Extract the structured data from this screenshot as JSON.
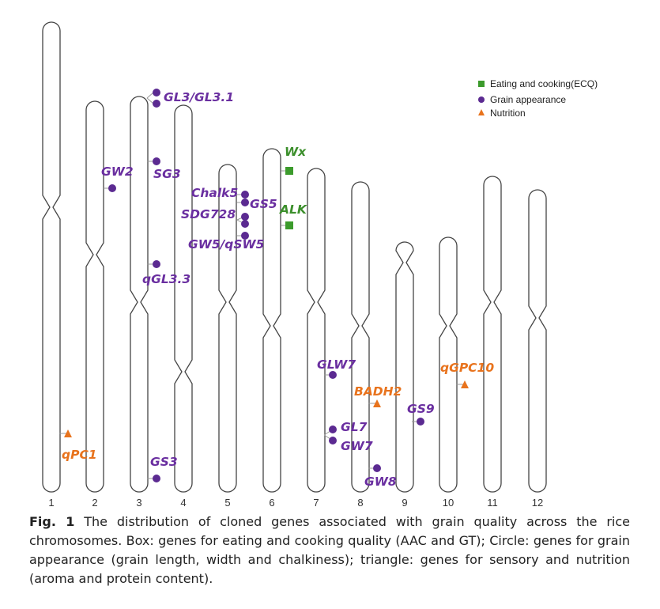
{
  "colors": {
    "ecq": "#3c8f2c",
    "appearance": "#6a2fa0",
    "appearance_fill": "#5b2a91",
    "nutrition": "#e8731d"
  },
  "legend": {
    "ecq": "Eating and cooking(ECQ)",
    "appearance": "Grain appearance",
    "nutrition": "Nutrition"
  },
  "chromosome_numbers": [
    "1",
    "2",
    "3",
    "4",
    "5",
    "6",
    "7",
    "8",
    "9",
    "10",
    "11",
    "12"
  ],
  "genes": [
    {
      "name": "GL3/GL3.1",
      "chromosome": "3",
      "category": "appearance"
    },
    {
      "name": "SG3",
      "chromosome": "3",
      "category": "appearance"
    },
    {
      "name": "qGL3.3",
      "chromosome": "3",
      "category": "appearance"
    },
    {
      "name": "GS3",
      "chromosome": "3",
      "category": "appearance"
    },
    {
      "name": "GW2",
      "chromosome": "2",
      "category": "appearance"
    },
    {
      "name": "qPC1",
      "chromosome": "1",
      "category": "nutrition"
    },
    {
      "name": "Chalk5",
      "chromosome": "5",
      "category": "appearance"
    },
    {
      "name": "GS5",
      "chromosome": "5",
      "category": "appearance"
    },
    {
      "name": "SDG728",
      "chromosome": "5",
      "category": "appearance"
    },
    {
      "name": "GW5/qSW5",
      "chromosome": "5",
      "category": "appearance"
    },
    {
      "name": "Wx",
      "chromosome": "6",
      "category": "ecq"
    },
    {
      "name": "ALK",
      "chromosome": "6",
      "category": "ecq"
    },
    {
      "name": "GLW7",
      "chromosome": "7",
      "category": "appearance"
    },
    {
      "name": "GL7",
      "chromosome": "7",
      "category": "appearance"
    },
    {
      "name": "GW7",
      "chromosome": "7",
      "category": "appearance"
    },
    {
      "name": "BADH2",
      "chromosome": "8",
      "category": "nutrition"
    },
    {
      "name": "GW8",
      "chromosome": "8",
      "category": "appearance"
    },
    {
      "name": "GS9",
      "chromosome": "9",
      "category": "appearance"
    },
    {
      "name": "qGPC10",
      "chromosome": "10",
      "category": "nutrition"
    }
  ],
  "caption": {
    "label": "Fig. 1",
    "text": "The distribution of cloned genes associated with grain quality across the rice chromosomes. Box: genes for eating and cooking quality (AAC and GT); Circle: genes for grain appearance (grain length, width and chalkiness); triangle: genes for sensory and nutrition (aroma and protein content)."
  }
}
